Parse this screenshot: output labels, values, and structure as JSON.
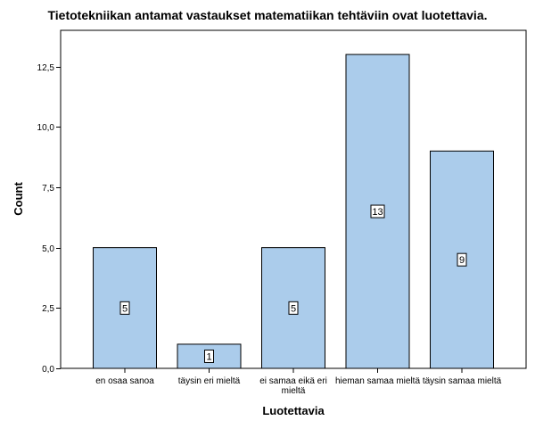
{
  "chart_data": {
    "type": "bar",
    "title": "Tietotekniikan antamat vastaukset matematiikan tehtäviin ovat luotettavia.",
    "xlabel": "Luotettavia",
    "ylabel": "Count",
    "categories": [
      [
        "en osaa sanoa"
      ],
      [
        "täysin eri mieltä"
      ],
      [
        "ei samaa eikä eri",
        "mieltä"
      ],
      [
        "hieman samaa mieltä"
      ],
      [
        "täysin samaa mieltä"
      ]
    ],
    "values": [
      5,
      1,
      5,
      13,
      9
    ],
    "value_labels": [
      "5",
      "1",
      "5",
      "13",
      "9"
    ],
    "ylim": [
      0,
      14
    ],
    "yticks": [
      0,
      2.5,
      5,
      7.5,
      10,
      12.5
    ],
    "ytick_labels": [
      "0,0",
      "2,5",
      "5,0",
      "7,5",
      "10,0",
      "12,5"
    ],
    "grid": false,
    "colors": {
      "bar_fill": "#abcceb",
      "bar_stroke": "#000000",
      "frame": "#000000"
    }
  }
}
